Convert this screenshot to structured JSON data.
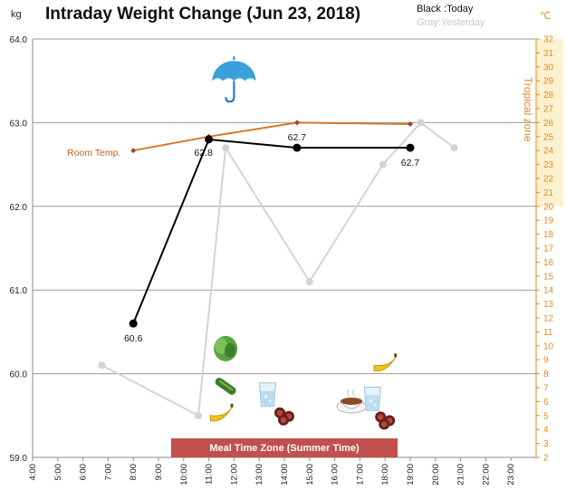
{
  "chart_data": {
    "type": "line",
    "title": "Intraday Weight Change (Jun 23, 2018)",
    "y_left_unit": "kg",
    "y_right_unit": "℃",
    "ylim_left": [
      59.0,
      64.0
    ],
    "ylim_right": [
      2,
      32
    ],
    "y_left_ticks": [
      "59.0",
      "60.0",
      "61.0",
      "62.0",
      "63.0",
      "64.0"
    ],
    "y_right_ticks": [
      "2",
      "3",
      "4",
      "5",
      "6",
      "7",
      "8",
      "9",
      "10",
      "11",
      "12",
      "13",
      "14",
      "15",
      "16",
      "17",
      "18",
      "19",
      "20",
      "21",
      "22",
      "23",
      "24",
      "25",
      "26",
      "27",
      "28",
      "29",
      "30",
      "31",
      "32"
    ],
    "x_ticks": [
      "4:00",
      "5:00",
      "6:00",
      "7:00",
      "8:00",
      "9:00",
      "10:00",
      "11:00",
      "12:00",
      "13:00",
      "14:00",
      "15:00",
      "16:00",
      "17:00",
      "18:00",
      "19:00",
      "20:00",
      "21:00",
      "22:00",
      "23:00"
    ],
    "legend": {
      "today": "Black :Today",
      "yesterday": "Gray:Yesterday"
    },
    "grid": "horizontal",
    "series": [
      {
        "name": "Today",
        "color": "#000000",
        "points": [
          {
            "x": "8:00",
            "y": 60.6,
            "label": "60.6"
          },
          {
            "x": "11:00",
            "y": 62.8,
            "label": "62.8"
          },
          {
            "x": "14:30",
            "y": 62.7,
            "label": "62.7"
          },
          {
            "x": "19:00",
            "y": 62.7,
            "label": "62.7"
          }
        ]
      },
      {
        "name": "Yesterday",
        "color": "#d4d4d4",
        "points": [
          {
            "x": "6:45",
            "y": 60.1
          },
          {
            "x": "10:35",
            "y": 59.5
          },
          {
            "x": "11:40",
            "y": 62.7
          },
          {
            "x": "15:00",
            "y": 61.1
          },
          {
            "x": "17:55",
            "y": 62.5
          },
          {
            "x": "19:25",
            "y": 63.0
          },
          {
            "x": "20:45",
            "y": 62.7
          }
        ]
      },
      {
        "name": "Room Temp.",
        "color": "#d9772a",
        "axis": "right",
        "points": [
          {
            "x": "8:00",
            "y": 24.0
          },
          {
            "x": "11:00",
            "y": 25.0
          },
          {
            "x": "14:30",
            "y": 26.0
          },
          {
            "x": "19:00",
            "y": 25.9
          }
        ]
      }
    ],
    "room_temp_label": "Room Temp.",
    "tropical_zone": {
      "label": "Tropical zone",
      "from": 20,
      "to": 32
    },
    "meal_zone": {
      "label": "Meal Time Zone  (Summer Time)",
      "from": "9:30",
      "to": "18:30",
      "color": "#c0504d"
    },
    "annotations": [
      {
        "icon": "umbrella-icon",
        "x": "12:00",
        "y": 63.5
      },
      {
        "icon": "lettuce-icon",
        "x": "11:40",
        "y": 60.3
      },
      {
        "icon": "cucumber-icon",
        "x": "11:40",
        "y": 59.85
      },
      {
        "icon": "banana-icon",
        "x": "11:30",
        "y": 59.5
      },
      {
        "icon": "water-glass-icon",
        "x": "13:20",
        "y": 59.75
      },
      {
        "icon": "sausage-icon",
        "x": "14:00",
        "y": 59.5
      },
      {
        "icon": "soup-bowl-icon",
        "x": "16:40",
        "y": 59.65
      },
      {
        "icon": "water-glass-icon",
        "x": "17:30",
        "y": 59.7
      },
      {
        "icon": "banana-icon",
        "x": "18:00",
        "y": 60.1
      },
      {
        "icon": "sausage-icon",
        "x": "18:00",
        "y": 59.45
      }
    ]
  }
}
